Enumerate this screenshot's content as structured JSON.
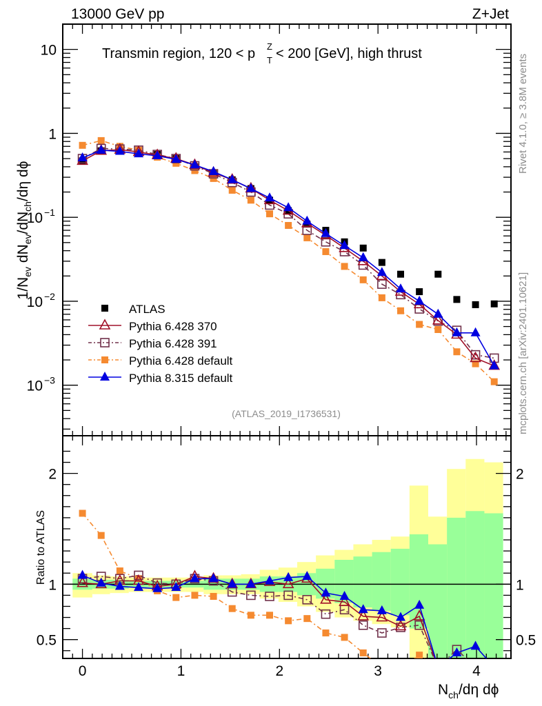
{
  "header": {
    "left_title": "13000 GeV pp",
    "right_title": "Z+Jet"
  },
  "side_text": {
    "rivet": "Rivet 4.1.0, ≥ 3.8M events",
    "mcplots": "mcplots.cern.ch [arXiv:2401.10621]"
  },
  "chart_data": [
    {
      "type": "scatter",
      "panel": "main",
      "title": "Transmin region, 120 < p_T^Z < 200 [GeV], high thrust",
      "analysis_tag": "(ATLAS_2019_I1736531)",
      "xlabel": "N_ch/dη dϕ",
      "ylabel": "1/N_ev dN_ev/dN_ch/dη dϕ",
      "yscale": "log",
      "xlim": [
        -0.2,
        4.35
      ],
      "ylim": [
        0.00025,
        20
      ],
      "x_ticks": [
        "0",
        "1",
        "2",
        "3",
        "4"
      ],
      "y_ticks": [
        "10^-3",
        "10^-2",
        "10^-1",
        "1",
        "10"
      ],
      "legend_position": "lower-left",
      "x": [
        0.0,
        0.19,
        0.38,
        0.57,
        0.76,
        0.95,
        1.14,
        1.33,
        1.52,
        1.71,
        1.9,
        2.09,
        2.28,
        2.47,
        2.66,
        2.85,
        3.04,
        3.23,
        3.42,
        3.61,
        3.8,
        3.99,
        4.18
      ],
      "series": [
        {
          "name": "ATLAS",
          "style": "data",
          "color": "#000000",
          "marker": "filled-square",
          "values": [
            0.47,
            0.62,
            0.62,
            0.58,
            0.56,
            0.5,
            0.4,
            0.33,
            0.28,
            0.22,
            0.16,
            0.12,
            0.083,
            0.07,
            0.051,
            0.043,
            0.029,
            0.021,
            0.013,
            0.021,
            0.0105,
            0.0091,
            0.0093
          ]
        },
        {
          "name": "Pythia 6.428 370",
          "style": "solid",
          "color": "#a01028",
          "marker": "open-triangle",
          "values": [
            0.47,
            0.62,
            0.64,
            0.6,
            0.55,
            0.5,
            0.42,
            0.34,
            0.28,
            0.22,
            0.16,
            0.12,
            0.085,
            0.061,
            0.043,
            0.03,
            0.02,
            0.013,
            0.0092,
            0.0059,
            0.004,
            0.0021,
            0.0017
          ]
        },
        {
          "name": "Pythia 6.428 391",
          "style": "dash-dot",
          "color": "#70304a",
          "marker": "open-square",
          "values": [
            0.5,
            0.66,
            0.65,
            0.63,
            0.56,
            0.5,
            0.41,
            0.33,
            0.26,
            0.2,
            0.14,
            0.11,
            0.07,
            0.051,
            0.039,
            0.027,
            0.016,
            0.012,
            0.0081,
            0.0058,
            0.0045,
            0.0023,
            0.0021
          ]
        },
        {
          "name": "Pythia 6.428 default",
          "style": "dash-dot",
          "color": "#f58a30",
          "marker": "filled-square",
          "values": [
            0.72,
            0.82,
            0.7,
            0.63,
            0.52,
            0.44,
            0.36,
            0.29,
            0.21,
            0.16,
            0.11,
            0.08,
            0.057,
            0.039,
            0.026,
            0.018,
            0.011,
            0.0077,
            0.0053,
            0.0046,
            0.0025,
            0.0018,
            0.0011
          ]
        },
        {
          "name": "Pythia 8.315 default",
          "style": "solid",
          "color": "#0000e0",
          "marker": "filled-triangle",
          "values": [
            0.51,
            0.63,
            0.61,
            0.57,
            0.54,
            0.49,
            0.42,
            0.35,
            0.28,
            0.22,
            0.17,
            0.13,
            0.09,
            0.064,
            0.046,
            0.033,
            0.022,
            0.014,
            0.01,
            0.007,
            0.0042,
            0.0042,
            0.0017
          ]
        }
      ]
    },
    {
      "type": "scatter",
      "panel": "ratio",
      "ylabel": "Ratio to ATLAS",
      "xlabel": "N_ch/dη dϕ",
      "yscale": "linear",
      "xlim": [
        -0.2,
        4.35
      ],
      "ylim": [
        0.33,
        2.34
      ],
      "x_ticks": [
        "0",
        "1",
        "2",
        "3",
        "4"
      ],
      "y_ticks": [
        "0.5",
        "1",
        "2"
      ],
      "reference_line": 1,
      "x": [
        0.0,
        0.19,
        0.38,
        0.57,
        0.76,
        0.95,
        1.14,
        1.33,
        1.52,
        1.71,
        1.9,
        2.09,
        2.28,
        2.47,
        2.66,
        2.85,
        3.04,
        3.23,
        3.42,
        3.61,
        3.8,
        3.99,
        4.18
      ],
      "bands": {
        "bin_edges": [
          -0.1,
          0.1,
          0.28,
          0.47,
          0.66,
          0.85,
          1.04,
          1.23,
          1.42,
          1.61,
          1.8,
          1.99,
          2.18,
          2.37,
          2.56,
          2.75,
          2.94,
          3.13,
          3.32,
          3.51,
          3.7,
          3.89,
          4.08,
          4.27
        ],
        "inner_color": "#99ff99",
        "outer_color": "#ffff99",
        "inner_lo": [
          0.95,
          0.96,
          0.96,
          0.97,
          0.97,
          0.97,
          0.97,
          0.95,
          0.95,
          0.95,
          0.93,
          0.93,
          0.9,
          0.87,
          0.83,
          0.79,
          0.76,
          0.72,
          0.6,
          0.33,
          0.33,
          0.33,
          0.33
        ],
        "inner_hi": [
          1.05,
          1.04,
          1.04,
          1.03,
          1.03,
          1.03,
          1.03,
          1.05,
          1.05,
          1.05,
          1.07,
          1.07,
          1.1,
          1.14,
          1.22,
          1.25,
          1.29,
          1.32,
          1.45,
          1.36,
          1.6,
          1.66,
          1.64
        ],
        "outer_lo": [
          0.88,
          0.91,
          0.92,
          0.93,
          0.93,
          0.93,
          0.93,
          0.91,
          0.91,
          0.91,
          0.87,
          0.84,
          0.8,
          0.75,
          0.7,
          0.67,
          0.64,
          0.61,
          0.33,
          0.33,
          0.33,
          0.33,
          0.33
        ],
        "outer_hi": [
          1.1,
          1.08,
          1.07,
          1.06,
          1.06,
          1.06,
          1.06,
          1.08,
          1.08,
          1.09,
          1.13,
          1.15,
          1.2,
          1.26,
          1.31,
          1.36,
          1.4,
          1.43,
          1.89,
          1.61,
          2.04,
          2.13,
          2.1
        ]
      },
      "series": [
        {
          "name": "Pythia 6.428 370",
          "values": [
            1.01,
            1.0,
            1.03,
            1.03,
            0.98,
            1.0,
            1.07,
            1.05,
            1.0,
            1.0,
            1.02,
            1.0,
            1.05,
            0.86,
            0.84,
            0.71,
            0.7,
            0.62,
            0.71,
            0.25,
            0.25,
            0.25,
            0.25
          ]
        },
        {
          "name": "Pythia 6.428 391",
          "values": [
            1.05,
            1.07,
            1.05,
            1.08,
            1.01,
            1.0,
            1.05,
            1.03,
            0.93,
            0.9,
            0.89,
            0.9,
            0.86,
            0.73,
            0.77,
            0.63,
            0.56,
            0.61,
            0.63,
            0.25,
            0.41,
            0.25,
            0.25
          ]
        },
        {
          "name": "Pythia 6.428 default",
          "values": [
            1.64,
            1.44,
            1.12,
            1.05,
            0.94,
            0.88,
            0.9,
            0.89,
            0.78,
            0.72,
            0.72,
            0.67,
            0.69,
            0.56,
            0.52,
            0.38,
            0.25,
            0.25,
            0.36,
            0.25,
            0.25,
            0.25,
            0.25
          ]
        },
        {
          "name": "Pythia 8.315 default",
          "values": [
            1.08,
            1.01,
            0.98,
            0.97,
            0.96,
            0.97,
            1.05,
            1.05,
            1.0,
            1.0,
            1.03,
            1.06,
            1.07,
            0.92,
            0.89,
            0.77,
            0.76,
            0.7,
            0.81,
            0.25,
            0.38,
            0.44,
            0.25
          ]
        }
      ]
    }
  ]
}
